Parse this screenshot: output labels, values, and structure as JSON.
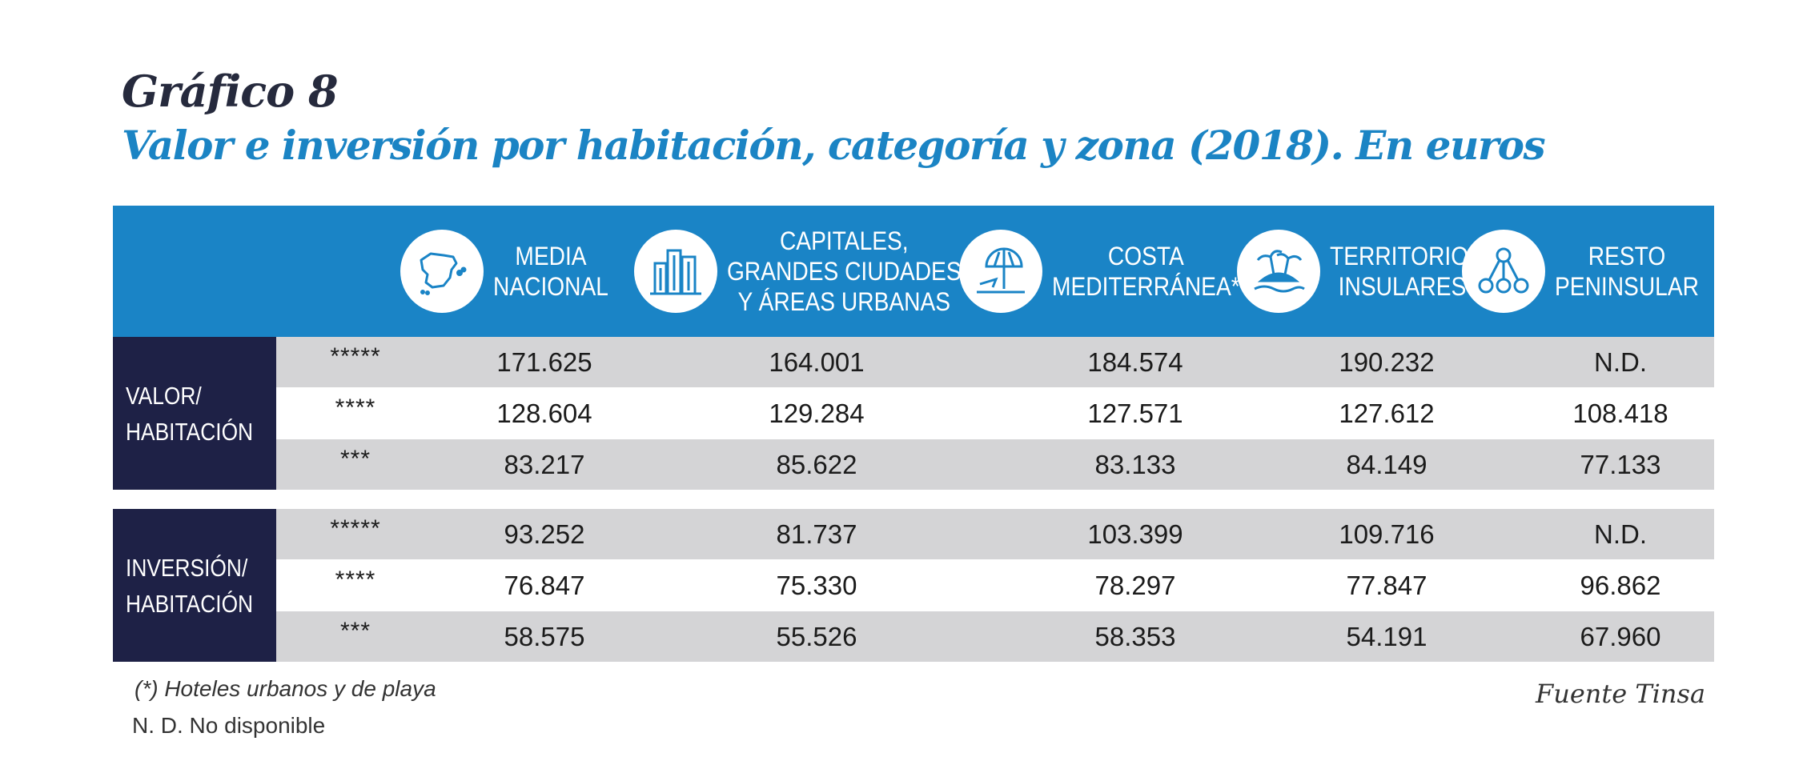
{
  "chart_data": {
    "type": "table",
    "title": "Gráfico 8",
    "subtitle": "Valor e inversión por habitación, categoría y zona (2018). En euros",
    "columns": [
      {
        "icon": "spain-map-icon",
        "lines": [
          "MEDIA",
          "NACIONAL"
        ]
      },
      {
        "icon": "buildings-icon",
        "lines": [
          "CAPITALES,",
          "GRANDES CIUDADES",
          "Y ÁREAS URBANAS"
        ]
      },
      {
        "icon": "beach-umbrella-icon",
        "lines": [
          "COSTA",
          "MEDITERRÁNEA*"
        ]
      },
      {
        "icon": "island-icon",
        "lines": [
          "TERRITORIOS",
          "INSULARES*"
        ]
      },
      {
        "icon": "network-nodes-icon",
        "lines": [
          "RESTO",
          "PENINSULAR"
        ]
      }
    ],
    "groups": [
      {
        "label_lines": [
          "VALOR/",
          "HABITACIÓN"
        ],
        "rows": [
          {
            "category": "*****",
            "values": [
              "171.625",
              "164.001",
              "184.574",
              "190.232",
              "N.D."
            ]
          },
          {
            "category": "****",
            "values": [
              "128.604",
              "129.284",
              "127.571",
              "127.612",
              "108.418"
            ]
          },
          {
            "category": "***",
            "values": [
              "83.217",
              "85.622",
              "83.133",
              "84.149",
              "77.133"
            ]
          }
        ]
      },
      {
        "label_lines": [
          "INVERSIÓN/",
          "HABITACIÓN"
        ],
        "rows": [
          {
            "category": "*****",
            "values": [
              "93.252",
              "81.737",
              "103.399",
              "109.716",
              "N.D."
            ]
          },
          {
            "category": "****",
            "values": [
              "76.847",
              "75.330",
              "78.297",
              "77.847",
              "96.862"
            ]
          },
          {
            "category": "***",
            "values": [
              "58.575",
              "55.526",
              "58.353",
              "54.191",
              "67.960"
            ]
          }
        ]
      }
    ],
    "footnotes": [
      "(*) Hoteles urbanos y de playa",
      "N. D. No disponible"
    ],
    "source": "Fuente Tinsa"
  },
  "colors": {
    "header_band": "#1a84c6",
    "group_box": "#1e2146",
    "grey_row": "#d4d4d6",
    "subtitle": "#1b84c4",
    "title": "#262a3d"
  }
}
